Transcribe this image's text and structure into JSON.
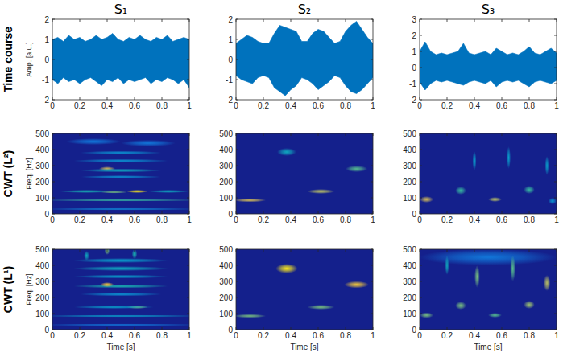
{
  "chart_data": [
    {
      "type": "area",
      "title": "S₁",
      "row_label": "Time course",
      "ylabel": "Amp. [a.u.]",
      "color": "#0072bd",
      "x": [
        0,
        0.04,
        0.08,
        0.12,
        0.16,
        0.2,
        0.24,
        0.28,
        0.32,
        0.36,
        0.4,
        0.44,
        0.48,
        0.52,
        0.56,
        0.6,
        0.64,
        0.68,
        0.72,
        0.76,
        0.8,
        0.84,
        0.88,
        0.92,
        0.96,
        1
      ],
      "upper": [
        1.0,
        1.1,
        0.9,
        1.2,
        1.0,
        1.1,
        0.9,
        1.0,
        1.2,
        1.0,
        1.1,
        1.3,
        1.0,
        0.9,
        1.1,
        1.0,
        1.2,
        1.0,
        0.9,
        1.1,
        1.0,
        1.2,
        0.9,
        1.0,
        1.1,
        1.0
      ],
      "lower": [
        -1.0,
        -1.2,
        -0.9,
        -1.1,
        -1.0,
        -1.2,
        -1.0,
        -0.9,
        -1.1,
        -1.3,
        -1.0,
        -1.1,
        -0.9,
        -1.2,
        -1.0,
        -1.1,
        -1.0,
        -0.9,
        -1.2,
        -1.0,
        -1.1,
        -0.9,
        -1.0,
        -1.2,
        -1.0,
        -1.4
      ],
      "xlim": [
        0,
        1
      ],
      "ylim": [
        -2,
        2
      ],
      "xticks": [
        0,
        0.2,
        0.4,
        0.6,
        0.8,
        1
      ],
      "yticks": [
        -2,
        -1,
        0,
        1,
        2
      ]
    },
    {
      "type": "area",
      "title": "S₂",
      "color": "#0072bd",
      "x": [
        0,
        0.04,
        0.08,
        0.12,
        0.16,
        0.2,
        0.24,
        0.28,
        0.32,
        0.36,
        0.4,
        0.44,
        0.48,
        0.52,
        0.56,
        0.6,
        0.64,
        0.68,
        0.72,
        0.76,
        0.8,
        0.84,
        0.88,
        0.92,
        0.96,
        1
      ],
      "upper": [
        0.8,
        1.0,
        1.2,
        1.1,
        0.9,
        0.8,
        0.8,
        1.3,
        1.7,
        1.6,
        1.5,
        1.4,
        0.9,
        0.9,
        1.3,
        1.5,
        1.4,
        1.1,
        0.8,
        0.9,
        1.4,
        1.7,
        1.9,
        1.5,
        1.1,
        0.8
      ],
      "lower": [
        -0.8,
        -1.0,
        -1.1,
        -1.2,
        -0.9,
        -0.8,
        -0.9,
        -1.4,
        -1.6,
        -1.8,
        -1.5,
        -1.3,
        -0.9,
        -1.0,
        -1.2,
        -1.5,
        -1.3,
        -1.1,
        -0.8,
        -0.9,
        -1.3,
        -1.6,
        -1.7,
        -1.5,
        -1.2,
        -0.9
      ],
      "xlim": [
        0,
        1
      ],
      "ylim": [
        -2,
        2
      ],
      "xticks": [
        0,
        0.2,
        0.4,
        0.6,
        0.8,
        1
      ],
      "yticks": [
        -2,
        -1,
        0,
        1,
        2
      ]
    },
    {
      "type": "area",
      "title": "S₃",
      "color": "#0072bd",
      "x": [
        0,
        0.04,
        0.08,
        0.12,
        0.16,
        0.2,
        0.24,
        0.28,
        0.32,
        0.36,
        0.4,
        0.44,
        0.48,
        0.52,
        0.56,
        0.6,
        0.64,
        0.68,
        0.72,
        0.76,
        0.8,
        0.84,
        0.88,
        0.92,
        0.96,
        1
      ],
      "upper": [
        1.0,
        1.6,
        1.0,
        0.8,
        0.9,
        0.8,
        0.9,
        1.0,
        1.5,
        0.9,
        0.8,
        0.9,
        1.0,
        0.8,
        1.2,
        1.0,
        0.8,
        0.9,
        0.8,
        1.0,
        1.3,
        0.9,
        0.8,
        1.0,
        1.2,
        0.9
      ],
      "lower": [
        -0.9,
        -1.4,
        -1.0,
        -0.8,
        -0.9,
        -0.8,
        -0.9,
        -1.0,
        -1.1,
        -0.9,
        -0.8,
        -0.9,
        -1.0,
        -0.8,
        -1.2,
        -0.9,
        -0.8,
        -0.9,
        -0.8,
        -1.0,
        -1.2,
        -0.9,
        -0.8,
        -0.9,
        -1.0,
        -0.8
      ],
      "xlim": [
        0,
        1
      ],
      "ylim": [
        -2,
        3
      ],
      "xticks": [
        0,
        0.2,
        0.4,
        0.6,
        0.8,
        1
      ],
      "yticks": [
        -2,
        -1,
        0,
        1,
        2,
        3
      ]
    },
    {
      "type": "heatmap",
      "row_label": "CWT (L²)",
      "ylabel": "Freq. [Hz]",
      "xlim": [
        0,
        1
      ],
      "ylim": [
        0,
        500
      ],
      "xticks": [
        0,
        0.2,
        0.4,
        0.6,
        0.8,
        1
      ],
      "yticks": [
        0,
        100,
        200,
        300,
        400,
        500
      ],
      "clim": [
        0,
        1
      ],
      "blobs": [
        {
          "t": 0.5,
          "f": 85,
          "dt": 0.6,
          "df": 8,
          "value": 0.5
        },
        {
          "t": 0.25,
          "f": 140,
          "dt": 0.2,
          "df": 10,
          "value": 0.45
        },
        {
          "t": 0.62,
          "f": 140,
          "dt": 0.08,
          "df": 10,
          "value": 0.95
        },
        {
          "t": 0.85,
          "f": 140,
          "dt": 0.15,
          "df": 10,
          "value": 0.4
        },
        {
          "t": 0.45,
          "f": 135,
          "dt": 0.1,
          "df": 8,
          "value": 0.6
        },
        {
          "t": 0.4,
          "f": 280,
          "dt": 0.06,
          "df": 15,
          "value": 0.75
        },
        {
          "t": 0.5,
          "f": 270,
          "dt": 0.3,
          "df": 12,
          "value": 0.4
        },
        {
          "t": 0.5,
          "f": 330,
          "dt": 0.35,
          "df": 12,
          "value": 0.3
        },
        {
          "t": 0.5,
          "f": 380,
          "dt": 0.3,
          "df": 12,
          "value": 0.3
        },
        {
          "t": 0.5,
          "f": 230,
          "dt": 0.3,
          "df": 10,
          "value": 0.3
        },
        {
          "t": 0.5,
          "f": 30,
          "dt": 0.6,
          "df": 8,
          "value": 0.25
        },
        {
          "t": 0.3,
          "f": 450,
          "dt": 0.2,
          "df": 20,
          "value": 0.2
        },
        {
          "t": 0.7,
          "f": 440,
          "dt": 0.2,
          "df": 20,
          "value": 0.2
        }
      ]
    },
    {
      "type": "heatmap",
      "xlim": [
        0,
        1
      ],
      "ylim": [
        0,
        500
      ],
      "xticks": [
        0,
        0.2,
        0.4,
        0.6,
        0.8,
        1
      ],
      "yticks": [
        0,
        100,
        200,
        300,
        400,
        500
      ],
      "clim": [
        0,
        1
      ],
      "blobs": [
        {
          "t": 0.1,
          "f": 85,
          "dt": 0.12,
          "df": 12,
          "value": 0.75
        },
        {
          "t": 0.37,
          "f": 385,
          "dt": 0.07,
          "df": 25,
          "value": 0.4
        },
        {
          "t": 0.62,
          "f": 140,
          "dt": 0.1,
          "df": 15,
          "value": 0.7
        },
        {
          "t": 0.88,
          "f": 280,
          "dt": 0.08,
          "df": 20,
          "value": 0.55
        }
      ]
    },
    {
      "type": "heatmap",
      "xlim": [
        0,
        1
      ],
      "ylim": [
        0,
        500
      ],
      "xticks": [
        0,
        0.2,
        0.4,
        0.6,
        0.8,
        1
      ],
      "yticks": [
        0,
        100,
        200,
        300,
        400,
        500
      ],
      "clim": [
        0,
        1
      ],
      "blobs": [
        {
          "t": 0.05,
          "f": 90,
          "dt": 0.05,
          "df": 20,
          "value": 0.75
        },
        {
          "t": 0.3,
          "f": 145,
          "dt": 0.04,
          "df": 25,
          "value": 0.5
        },
        {
          "t": 0.55,
          "f": 90,
          "dt": 0.05,
          "df": 15,
          "value": 0.7
        },
        {
          "t": 0.8,
          "f": 150,
          "dt": 0.04,
          "df": 25,
          "value": 0.5
        },
        {
          "t": 0.4,
          "f": 330,
          "dt": 0.015,
          "df": 60,
          "value": 0.35
        },
        {
          "t": 0.65,
          "f": 350,
          "dt": 0.015,
          "df": 70,
          "value": 0.35
        },
        {
          "t": 0.93,
          "f": 300,
          "dt": 0.015,
          "df": 60,
          "value": 0.35
        },
        {
          "t": 0.97,
          "f": 80,
          "dt": 0.03,
          "df": 20,
          "value": 0.3
        }
      ]
    },
    {
      "type": "heatmap",
      "row_label": "CWT (L¹)",
      "ylabel": "Freq. [Hz]",
      "xlabel": "Time [s]",
      "xlim": [
        0,
        1
      ],
      "ylim": [
        0,
        500
      ],
      "xticks": [
        0,
        0.2,
        0.4,
        0.6,
        0.8,
        1
      ],
      "yticks": [
        0,
        100,
        200,
        300,
        400,
        500
      ],
      "clim": [
        0,
        1
      ],
      "blobs": [
        {
          "t": 0.5,
          "f": 85,
          "dt": 0.6,
          "df": 8,
          "value": 0.35
        },
        {
          "t": 0.62,
          "f": 140,
          "dt": 0.08,
          "df": 10,
          "value": 0.6
        },
        {
          "t": 0.45,
          "f": 140,
          "dt": 0.3,
          "df": 10,
          "value": 0.35
        },
        {
          "t": 0.5,
          "f": 270,
          "dt": 0.35,
          "df": 12,
          "value": 0.45
        },
        {
          "t": 0.5,
          "f": 330,
          "dt": 0.35,
          "df": 12,
          "value": 0.35
        },
        {
          "t": 0.5,
          "f": 380,
          "dt": 0.35,
          "df": 15,
          "value": 0.4
        },
        {
          "t": 0.5,
          "f": 430,
          "dt": 0.35,
          "df": 15,
          "value": 0.35
        },
        {
          "t": 0.5,
          "f": 220,
          "dt": 0.3,
          "df": 12,
          "value": 0.3
        },
        {
          "t": 0.5,
          "f": 30,
          "dt": 0.6,
          "df": 8,
          "value": 0.2
        },
        {
          "t": 0.4,
          "f": 280,
          "dt": 0.05,
          "df": 15,
          "value": 0.85
        },
        {
          "t": 0.4,
          "f": 490,
          "dt": 0.02,
          "df": 25,
          "value": 0.6
        },
        {
          "t": 0.6,
          "f": 470,
          "dt": 0.02,
          "df": 30,
          "value": 0.45
        },
        {
          "t": 0.25,
          "f": 460,
          "dt": 0.02,
          "df": 30,
          "value": 0.4
        }
      ]
    },
    {
      "type": "heatmap",
      "xlabel": "Time [s]",
      "xlim": [
        0,
        1
      ],
      "ylim": [
        0,
        500
      ],
      "xticks": [
        0,
        0.2,
        0.4,
        0.6,
        0.8,
        1
      ],
      "yticks": [
        0,
        100,
        200,
        300,
        400,
        500
      ],
      "clim": [
        0,
        1
      ],
      "blobs": [
        {
          "t": 0.1,
          "f": 85,
          "dt": 0.12,
          "df": 12,
          "value": 0.6
        },
        {
          "t": 0.37,
          "f": 380,
          "dt": 0.08,
          "df": 30,
          "value": 0.95
        },
        {
          "t": 0.62,
          "f": 140,
          "dt": 0.1,
          "df": 15,
          "value": 0.6
        },
        {
          "t": 0.88,
          "f": 280,
          "dt": 0.09,
          "df": 22,
          "value": 0.85
        }
      ]
    },
    {
      "type": "heatmap",
      "xlabel": "Time [s]",
      "xlim": [
        0,
        1
      ],
      "ylim": [
        0,
        500
      ],
      "xticks": [
        0,
        0.2,
        0.4,
        0.6,
        0.8,
        1
      ],
      "yticks": [
        0,
        100,
        200,
        300,
        400,
        500
      ],
      "clim": [
        0,
        1
      ],
      "blobs": [
        {
          "t": 0.5,
          "f": 450,
          "dt": 0.5,
          "df": 50,
          "value": 0.2
        },
        {
          "t": 0.05,
          "f": 90,
          "dt": 0.05,
          "df": 18,
          "value": 0.6
        },
        {
          "t": 0.3,
          "f": 150,
          "dt": 0.04,
          "df": 25,
          "value": 0.6
        },
        {
          "t": 0.55,
          "f": 90,
          "dt": 0.05,
          "df": 15,
          "value": 0.55
        },
        {
          "t": 0.8,
          "f": 155,
          "dt": 0.04,
          "df": 25,
          "value": 0.65
        },
        {
          "t": 0.42,
          "f": 330,
          "dt": 0.02,
          "df": 70,
          "value": 0.6
        },
        {
          "t": 0.68,
          "f": 380,
          "dt": 0.02,
          "df": 80,
          "value": 0.55
        },
        {
          "t": 0.93,
          "f": 290,
          "dt": 0.025,
          "df": 50,
          "value": 0.7
        },
        {
          "t": 0.2,
          "f": 400,
          "dt": 0.015,
          "df": 60,
          "value": 0.4
        }
      ]
    }
  ]
}
